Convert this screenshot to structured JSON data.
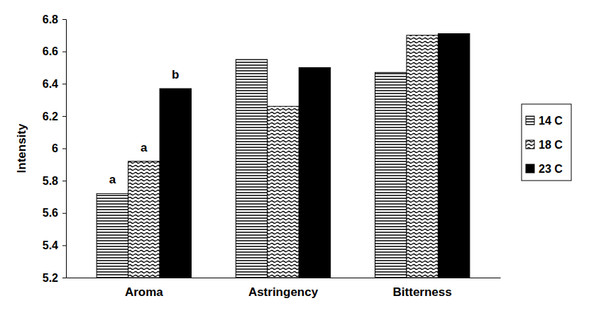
{
  "chart_data": {
    "type": "bar",
    "y_label": "Intensity",
    "categories": [
      "Aroma",
      "Astringency",
      "Bitterness"
    ],
    "series": [
      {
        "name": "14 C",
        "color": "#000000",
        "values": [
          5.72,
          6.55,
          6.47
        ]
      },
      {
        "name": "18 C",
        "color": "#000000",
        "values": [
          5.92,
          6.26,
          6.7
        ]
      },
      {
        "name": "23 C",
        "color": "#000000",
        "values": [
          6.37,
          6.5,
          6.71
        ]
      }
    ],
    "ylim": [
      5.2,
      6.8
    ],
    "yticks": [
      5.2,
      5.4,
      5.6,
      5.8,
      6,
      6.2,
      6.4,
      6.6,
      6.8
    ],
    "grid": false,
    "legend": "right",
    "annotations": [
      {
        "text": "a",
        "series": "14 C",
        "category": "Aroma"
      },
      {
        "text": "a",
        "series": "18 C",
        "category": "Aroma"
      },
      {
        "text": "b",
        "series": "23 C",
        "category": "Aroma"
      }
    ]
  }
}
